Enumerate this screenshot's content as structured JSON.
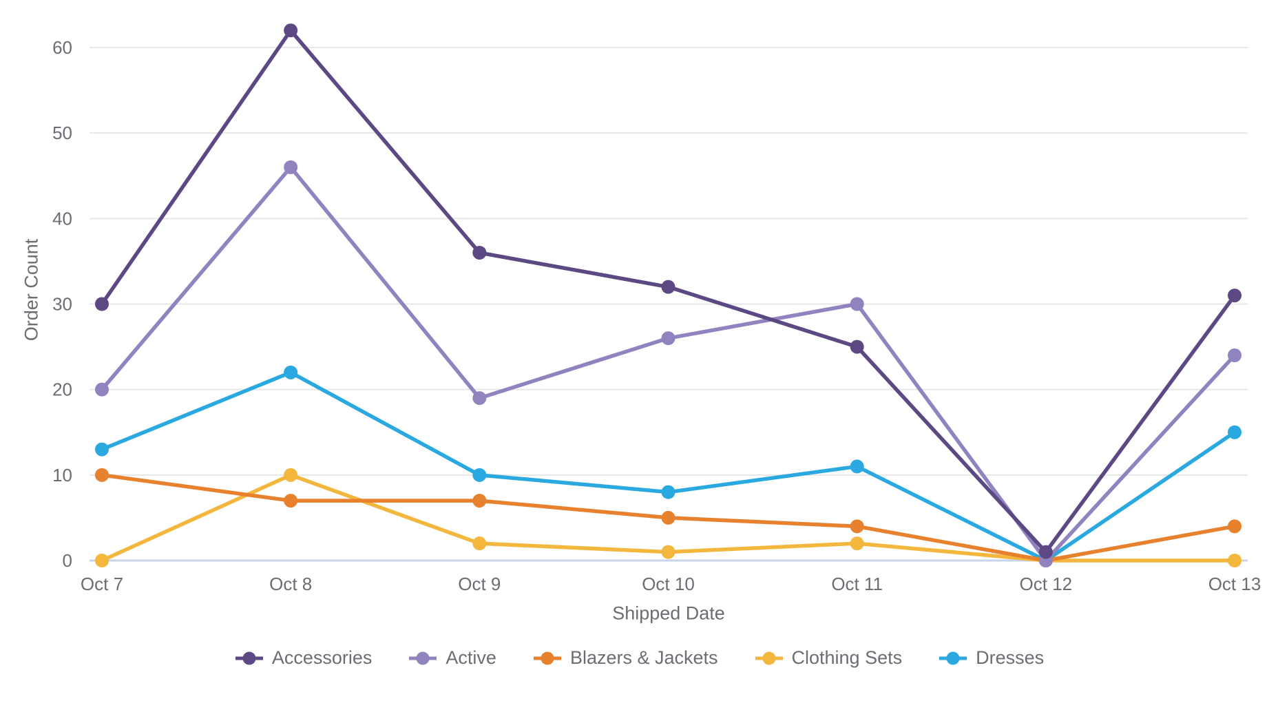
{
  "chart_data": {
    "type": "line",
    "title": "",
    "xlabel": "Shipped Date",
    "ylabel": "Order Count",
    "categories": [
      "Oct 7",
      "Oct 8",
      "Oct 9",
      "Oct 10",
      "Oct 11",
      "Oct 12",
      "Oct 13"
    ],
    "series": [
      {
        "name": "Accessories",
        "color": "#5c4983",
        "values": [
          30,
          62,
          36,
          32,
          25,
          1,
          31
        ]
      },
      {
        "name": "Active",
        "color": "#9083bf",
        "values": [
          20,
          46,
          19,
          26,
          30,
          0,
          24
        ]
      },
      {
        "name": "Blazers & Jackets",
        "color": "#e8812d",
        "values": [
          10,
          7,
          7,
          5,
          4,
          0,
          4
        ]
      },
      {
        "name": "Clothing Sets",
        "color": "#f4b73e",
        "values": [
          0,
          10,
          2,
          1,
          2,
          0,
          0
        ]
      },
      {
        "name": "Dresses",
        "color": "#2aa9e0",
        "values": [
          13,
          22,
          10,
          8,
          11,
          0,
          15
        ]
      }
    ],
    "y_ticks": [
      0,
      10,
      20,
      30,
      40,
      50,
      60
    ],
    "ylim": [
      0,
      64
    ],
    "grid": true,
    "legend_position": "bottom"
  },
  "colors": {
    "grid_line": "#e7e7e7",
    "zero_line": "#c9d4ea",
    "tick_text": "#6c6c74"
  }
}
